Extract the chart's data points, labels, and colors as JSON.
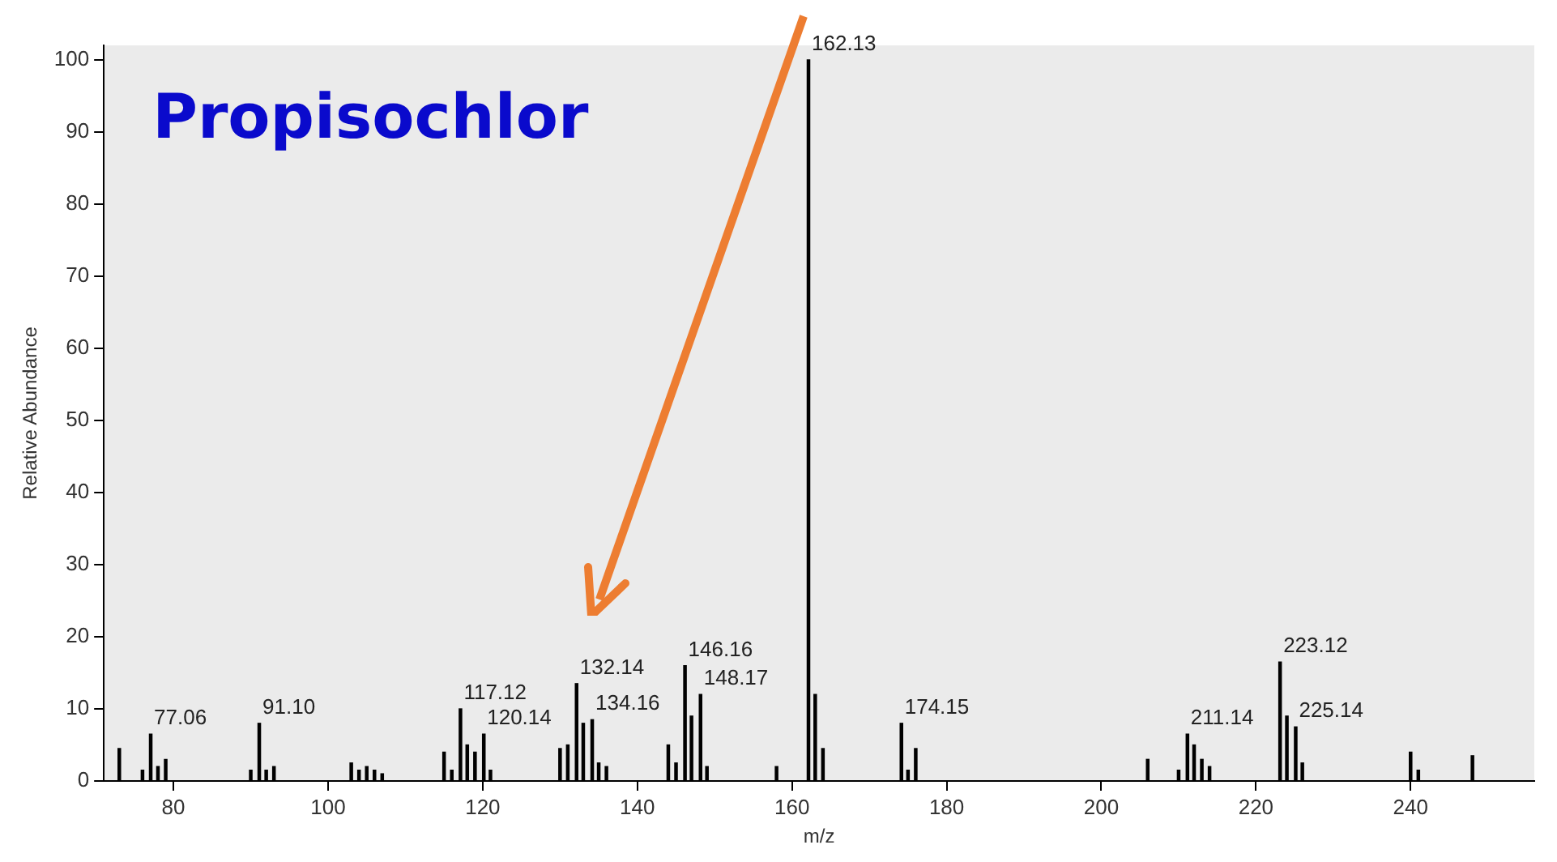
{
  "chart_data": {
    "type": "bar",
    "title": "Propisochlor",
    "xlabel": "m/z",
    "ylabel": "Relative Abundance",
    "x": [
      73,
      76,
      77.06,
      78,
      79,
      90,
      91.1,
      92,
      93,
      103,
      104,
      105,
      106,
      107,
      115,
      116,
      117.12,
      118,
      119,
      120.14,
      121,
      130,
      131,
      132.14,
      133,
      134.16,
      135,
      136,
      144,
      145,
      146.16,
      147,
      148.17,
      149,
      158,
      162.13,
      163,
      164,
      174.15,
      175,
      176,
      206,
      210,
      211.14,
      212,
      213,
      214,
      223.12,
      224,
      225.14,
      226,
      240,
      241,
      248
    ],
    "series": [
      {
        "color": "#000000",
        "values": [
          4.5,
          1.5,
          6.5,
          2,
          3,
          1.5,
          8,
          1.5,
          2,
          2.5,
          1.5,
          2,
          1.5,
          1,
          4,
          1.5,
          10,
          5,
          4,
          6.5,
          1.5,
          4.5,
          5,
          13.5,
          8,
          8.5,
          2.5,
          2,
          5,
          2.5,
          16,
          9,
          12,
          2,
          2,
          100,
          12,
          4.5,
          8,
          1.5,
          4.5,
          3,
          1.5,
          6.5,
          5,
          3,
          2,
          16.5,
          9,
          7.5,
          2.5,
          4,
          1.5,
          3.5
        ]
      }
    ],
    "xlim": [
      71,
      256
    ],
    "xticks": [
      80,
      100,
      120,
      140,
      160,
      180,
      200,
      220,
      240
    ],
    "ylim": [
      0,
      102
    ],
    "yticks": [
      0,
      10,
      20,
      30,
      40,
      50,
      60,
      70,
      80,
      90,
      100
    ],
    "grid": false,
    "legend": false,
    "annotations": [
      {
        "text": "77.06",
        "x": 77.06,
        "y": 6.5
      },
      {
        "text": "91.10",
        "x": 91.1,
        "y": 8
      },
      {
        "text": "117.12",
        "x": 117.12,
        "y": 10
      },
      {
        "text": "120.14",
        "x": 120.14,
        "y": 6.5
      },
      {
        "text": "132.14",
        "x": 132.14,
        "y": 13.5
      },
      {
        "text": "134.16",
        "x": 134.16,
        "y": 8.5
      },
      {
        "text": "146.16",
        "x": 146.16,
        "y": 16
      },
      {
        "text": "148.17",
        "x": 148.17,
        "y": 12
      },
      {
        "text": "162.13",
        "x": 162.13,
        "y": 100
      },
      {
        "text": "174.15",
        "x": 174.15,
        "y": 8
      },
      {
        "text": "211.14",
        "x": 211.14,
        "y": 6.5
      },
      {
        "text": "223.12",
        "x": 223.12,
        "y": 16.5
      },
      {
        "text": "225.14",
        "x": 225.14,
        "y": 7.5
      }
    ]
  }
}
